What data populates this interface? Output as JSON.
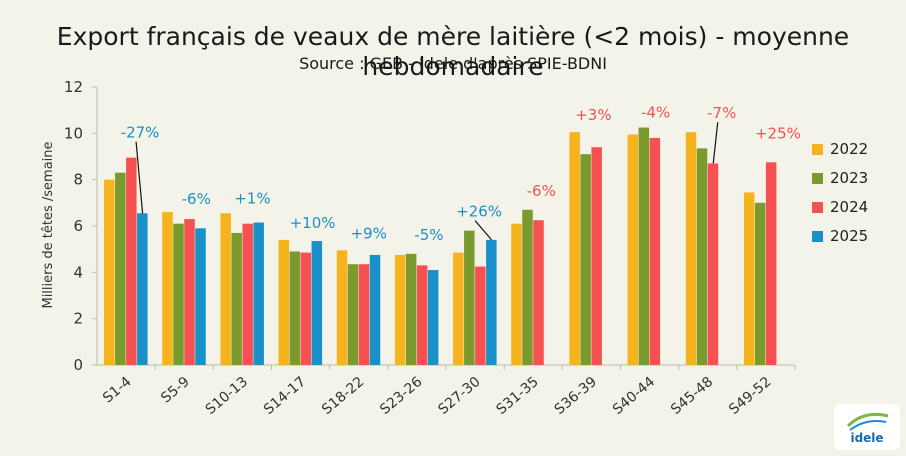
{
  "chart_data": {
    "type": "bar",
    "title": "Export français de veaux de mère laitière (<2 mois) - moyenne hebdomadaire",
    "subtitle": "Source : GEB - Idele d'après SPIE-BDNI",
    "ylabel": "Milliers de têtes /semaine",
    "xlabel": "",
    "ylim": [
      0,
      12
    ],
    "yticks": [
      0,
      2,
      4,
      6,
      8,
      10,
      12
    ],
    "grid": false,
    "legend_position": "right",
    "categories": [
      "S1-4",
      "S5-9",
      "S10-13",
      "S14-17",
      "S18-22",
      "S23-26",
      "S27-30",
      "S31-35",
      "S36-39",
      "S40-44",
      "S45-48",
      "S49-52"
    ],
    "series": [
      {
        "name": "2022",
        "color": "#f5b41e",
        "values": [
          8.0,
          6.6,
          6.55,
          5.4,
          4.95,
          4.75,
          4.85,
          6.1,
          10.05,
          9.95,
          10.05,
          7.45
        ]
      },
      {
        "name": "2023",
        "color": "#7a9a2e",
        "values": [
          8.3,
          6.1,
          5.7,
          4.9,
          4.35,
          4.8,
          5.8,
          6.7,
          9.1,
          10.25,
          9.35,
          7.0
        ]
      },
      {
        "name": "2024",
        "color": "#f65152",
        "values": [
          8.95,
          6.3,
          6.1,
          4.85,
          4.35,
          4.3,
          4.25,
          6.25,
          9.4,
          9.8,
          8.7,
          8.75
        ]
      },
      {
        "name": "2025",
        "color": "#1a90c8",
        "values": [
          6.55,
          5.9,
          6.15,
          5.35,
          4.75,
          4.1,
          5.4,
          null,
          null,
          null,
          null,
          null
        ]
      }
    ],
    "annotations": [
      {
        "category": "S1-4",
        "text": "-27%",
        "color": "#1a90c8",
        "leader": true
      },
      {
        "category": "S5-9",
        "text": "-6%",
        "color": "#1a90c8",
        "leader": false
      },
      {
        "category": "S10-13",
        "text": "+1%",
        "color": "#1a90c8",
        "leader": false
      },
      {
        "category": "S14-17",
        "text": "+10%",
        "color": "#1a90c8",
        "leader": false
      },
      {
        "category": "S18-22",
        "text": "+9%",
        "color": "#1a90c8",
        "leader": false
      },
      {
        "category": "S23-26",
        "text": "-5%",
        "color": "#1a90c8",
        "leader": false
      },
      {
        "category": "S27-30",
        "text": "+26%",
        "color": "#1a90c8",
        "leader": true
      },
      {
        "category": "S31-35",
        "text": "-6%",
        "color": "#f65152",
        "leader": false
      },
      {
        "category": "S36-39",
        "text": "+3%",
        "color": "#f65152",
        "leader": false
      },
      {
        "category": "S40-44",
        "text": "-4%",
        "color": "#f65152",
        "leader": false
      },
      {
        "category": "S45-48",
        "text": "-7%",
        "color": "#f65152",
        "leader": true
      },
      {
        "category": "S49-52",
        "text": "+25%",
        "color": "#f65152",
        "leader": false
      }
    ],
    "logo_text": "idele"
  }
}
